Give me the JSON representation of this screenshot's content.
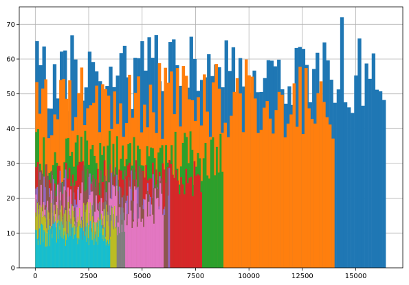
{
  "chart_data": {
    "type": "bar",
    "subtype": "overlaid-histogram",
    "title": "",
    "xlabel": "",
    "ylabel": "",
    "xlim": [
      -750,
      17200
    ],
    "ylim": [
      0,
      75
    ],
    "xticks": [
      0,
      2500,
      5000,
      7500,
      10000,
      12500,
      15000
    ],
    "xtick_labels": [
      "0",
      "2500",
      "5000",
      "7500",
      "10000",
      "12500",
      "15000"
    ],
    "yticks": [
      0,
      10,
      20,
      30,
      40,
      50,
      60,
      70
    ],
    "ytick_labels": [
      "0",
      "10",
      "20",
      "30",
      "40",
      "50",
      "60",
      "70"
    ],
    "grid": true,
    "legend": "none",
    "series": [
      {
        "color": "#1f77b4",
        "x_start": 0,
        "x_end": 16400,
        "bins": 100,
        "low": 44,
        "high": 67,
        "max_value": 72,
        "seed": 11
      },
      {
        "color": "#ff7f0e",
        "x_start": 0,
        "x_end": 14000,
        "bins": 100,
        "low": 37,
        "high": 60,
        "max_value": 60,
        "seed": 23
      },
      {
        "color": "#2ca02c",
        "x_start": 0,
        "x_end": 8800,
        "bins": 100,
        "low": 23,
        "high": 40,
        "max_value": 44,
        "seed": 37
      },
      {
        "color": "#d62728",
        "x_start": 0,
        "x_end": 7800,
        "bins": 100,
        "low": 20,
        "high": 31,
        "max_value": 32,
        "seed": 41
      },
      {
        "color": "#9467bd",
        "x_start": 0,
        "x_end": 6300,
        "bins": 100,
        "low": 13,
        "high": 29,
        "max_value": 30,
        "seed": 53
      },
      {
        "color": "#8c564b",
        "x_start": 0,
        "x_end": 6200,
        "bins": 100,
        "low": 12,
        "high": 30,
        "max_value": 30,
        "seed": 61
      },
      {
        "color": "#e377c2",
        "x_start": 0,
        "x_end": 6000,
        "bins": 100,
        "low": 11,
        "high": 25,
        "max_value": 25,
        "seed": 71
      },
      {
        "color": "#7f7f7f",
        "x_start": 0,
        "x_end": 4200,
        "bins": 100,
        "low": 9,
        "high": 20,
        "max_value": 22,
        "seed": 83
      },
      {
        "color": "#bcbd22",
        "x_start": 0,
        "x_end": 3800,
        "bins": 100,
        "low": 7,
        "high": 19,
        "max_value": 20,
        "seed": 97
      },
      {
        "color": "#17becf",
        "x_start": 0,
        "x_end": 3500,
        "bins": 100,
        "low": 6,
        "high": 14,
        "max_value": 14,
        "seed": 101
      }
    ]
  }
}
